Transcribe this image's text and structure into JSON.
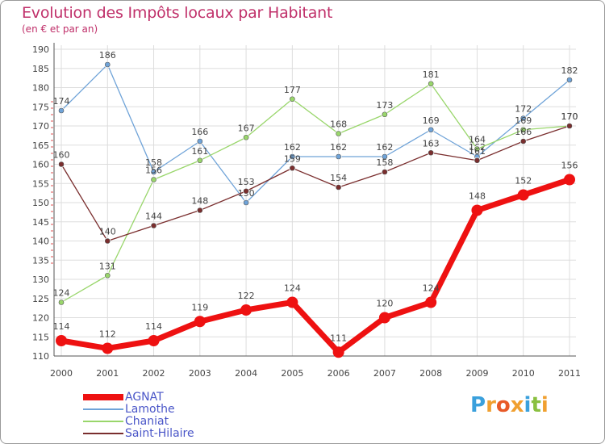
{
  "header": {
    "title": "Evolution des Impôts locaux par Habitant",
    "subtitle": "(en € et par an)"
  },
  "logo": {
    "letters": [
      "P",
      "r",
      "o",
      "x",
      "i",
      "t",
      "i"
    ],
    "colors": [
      "#3aa0dc",
      "#f0a030",
      "#e85a28",
      "#f0a030",
      "#3aa0dc",
      "#8ac040",
      "#f0a030"
    ]
  },
  "chart_data": {
    "type": "line",
    "title": "Evolution des Impôts locaux par Habitant",
    "subtitle": "(en € et par an)",
    "xlabel": "",
    "ylabel": "",
    "categories": [
      "2000",
      "2001",
      "2002",
      "2003",
      "2004",
      "2005",
      "2006",
      "2007",
      "2008",
      "2009",
      "2010",
      "2011"
    ],
    "ylim": [
      110,
      190
    ],
    "yticks": [
      110,
      115,
      120,
      125,
      130,
      135,
      140,
      145,
      150,
      155,
      160,
      165,
      170,
      175,
      180,
      185,
      190
    ],
    "grid": true,
    "legend_position": "bottom-left",
    "series": [
      {
        "name": "Lamothe",
        "color": "#6fa3d8",
        "values": [
          174,
          186,
          158,
          166,
          150,
          162,
          162,
          162,
          169,
          162,
          172,
          182
        ]
      },
      {
        "name": "Chaniat",
        "color": "#99d66b",
        "values": [
          124,
          131,
          156,
          161,
          167,
          177,
          168,
          173,
          181,
          164,
          169,
          170
        ]
      },
      {
        "name": "Saint-Hilaire",
        "color": "#7a2e2e",
        "values": [
          160,
          140,
          144,
          148,
          153,
          159,
          154,
          158,
          163,
          161,
          166,
          170
        ]
      },
      {
        "name": "AGNAT",
        "color": "#ee1111",
        "values": [
          114,
          112,
          114,
          119,
          122,
          124,
          111,
          120,
          124,
          148,
          152,
          156
        ]
      }
    ],
    "legend_order": [
      "AGNAT",
      "Lamothe",
      "Chaniat",
      "Saint-Hilaire"
    ]
  }
}
